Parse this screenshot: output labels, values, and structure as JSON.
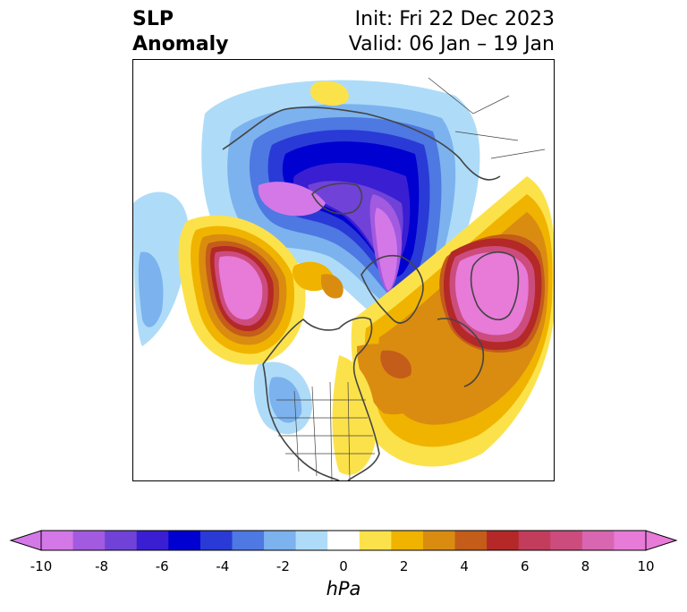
{
  "title": {
    "left_line1": "SLP",
    "left_line2": "Anomaly",
    "right_line1": "Init: Fri 22 Dec 2023",
    "right_line2": "Valid: 06 Jan – 19 Jan"
  },
  "colorbar": {
    "unit": "hPa",
    "min": -10,
    "max": 10,
    "colors": [
      "#d478e8",
      "#a25ae0",
      "#7042d8",
      "#3a1ed2",
      "#0000d0",
      "#2a3ad6",
      "#4e78e2",
      "#7cb2ee",
      "#aedcf8",
      "#ffffff",
      "#fce24a",
      "#f0b400",
      "#da8c10",
      "#c45c1a",
      "#b42828",
      "#c23c5c",
      "#cc4c7e",
      "#d866b0",
      "#e87ad8"
    ],
    "ticks": [
      "-10",
      "-8",
      "-6",
      "-4",
      "-2",
      "0",
      "2",
      "4",
      "6",
      "8",
      "10"
    ]
  }
}
